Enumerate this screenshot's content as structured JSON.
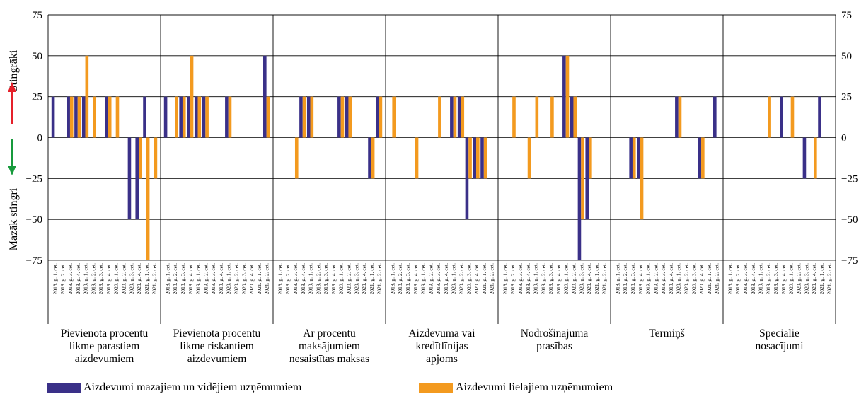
{
  "chart_data": {
    "type": "bar",
    "ylim": [
      -75,
      75
    ],
    "yticks": [
      75,
      50,
      25,
      0,
      -25,
      -50,
      -75
    ],
    "ytick_labels": [
      "75",
      "50",
      "25",
      "0",
      "−25",
      "−50",
      "−75"
    ],
    "ylabel_top": "Stingrāki",
    "ylabel_bottom": "Mazāk stingri",
    "periods": [
      "2018. g. 1. cet.",
      "2018. g. 2. cet.",
      "2018. g. 3. cet.",
      "2018. g. 4. cet.",
      "2019. g. 1. cet.",
      "2019. g. 2. cet.",
      "2019. g. 3. cet.",
      "2019. g. 4. cet.",
      "2020. g. 1. cet.",
      "2020. g. 2. cet.",
      "2020. g. 3. cet.",
      "2020. g. 4. cet.",
      "2021. g. 1. cet.",
      "2021. g. 2. cet."
    ],
    "panels": [
      {
        "label": "Pievienotā procentu likme parastiem aizdevumiem",
        "sme": [
          25,
          0,
          25,
          25,
          25,
          0,
          0,
          25,
          0,
          0,
          -50,
          -50,
          25,
          0
        ],
        "large": [
          0,
          0,
          25,
          25,
          50,
          25,
          0,
          25,
          25,
          0,
          0,
          -25,
          -75,
          -25
        ]
      },
      {
        "label": "Pievienotā procentu likme riskantiem aizdevumiem",
        "sme": [
          25,
          0,
          25,
          25,
          25,
          25,
          0,
          0,
          25,
          0,
          0,
          0,
          0,
          50
        ],
        "large": [
          0,
          25,
          25,
          50,
          25,
          25,
          0,
          0,
          25,
          0,
          0,
          0,
          0,
          25
        ]
      },
      {
        "label": "Ar procentu maksājumiem nesaistītas maksas",
        "sme": [
          0,
          0,
          0,
          25,
          25,
          0,
          0,
          0,
          25,
          25,
          0,
          0,
          -25,
          25
        ],
        "large": [
          0,
          0,
          -25,
          25,
          25,
          0,
          0,
          0,
          25,
          25,
          0,
          0,
          -25,
          25
        ]
      },
      {
        "label": "Aizdevuma vai kredītlīnijas apjoms",
        "sme": [
          0,
          0,
          0,
          0,
          0,
          0,
          0,
          0,
          25,
          25,
          -50,
          -25,
          -25,
          0
        ],
        "large": [
          25,
          0,
          0,
          -25,
          0,
          0,
          25,
          0,
          25,
          25,
          -25,
          -25,
          -25,
          0
        ]
      },
      {
        "label": "Nodrošinājuma prasības",
        "sme": [
          0,
          0,
          0,
          0,
          0,
          0,
          0,
          0,
          50,
          25,
          -75,
          -50,
          0,
          0
        ],
        "large": [
          0,
          25,
          0,
          -25,
          25,
          0,
          25,
          0,
          50,
          25,
          -50,
          -25,
          0,
          0
        ]
      },
      {
        "label": "Termiņš",
        "sme": [
          0,
          0,
          -25,
          -25,
          0,
          0,
          0,
          0,
          25,
          0,
          0,
          -25,
          0,
          25
        ],
        "large": [
          0,
          0,
          -25,
          -50,
          0,
          0,
          0,
          0,
          25,
          0,
          0,
          -25,
          0,
          0
        ]
      },
      {
        "label": "Speciālie nosacījumi",
        "sme": [
          0,
          0,
          0,
          0,
          0,
          0,
          0,
          25,
          0,
          0,
          -25,
          0,
          25,
          0
        ],
        "large": [
          0,
          0,
          0,
          0,
          0,
          25,
          0,
          0,
          25,
          0,
          0,
          -25,
          0,
          0
        ]
      }
    ],
    "series": [
      {
        "name": "Aizdevumi mazajiem un vidējiem uzņēmumiem",
        "color": "#3a3088"
      },
      {
        "name": "Aizdevumi lielajiem uzņēmumiem",
        "color": "#f39a1f"
      }
    ],
    "legend_position": "bottom",
    "grid": true
  }
}
